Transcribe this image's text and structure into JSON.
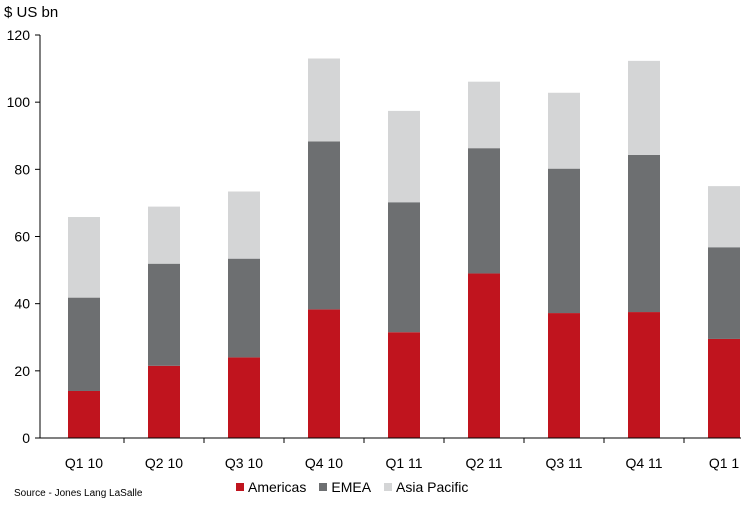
{
  "chart_data": {
    "type": "bar",
    "stacked": true,
    "ylabel": "$ US bn",
    "ylim": [
      0,
      120
    ],
    "yticks": [
      0,
      20,
      40,
      60,
      80,
      100,
      120
    ],
    "categories": [
      "Q1 10",
      "Q2 10",
      "Q3 10",
      "Q4 10",
      "Q1 11",
      "Q2 11",
      "Q3 11",
      "Q4 11",
      "Q1 1"
    ],
    "series": [
      {
        "name": "Americas",
        "color": "#c0141e",
        "values": [
          14,
          21.5,
          24,
          38.3,
          31.5,
          49,
          37.2,
          37.5,
          29.5
        ]
      },
      {
        "name": "EMEA",
        "color": "#6d6f71",
        "values": [
          27.8,
          30.4,
          29.4,
          50,
          38.7,
          37.3,
          43,
          46.8,
          27.3
        ]
      },
      {
        "name": "Asia Pacific",
        "color": "#d4d5d6",
        "values": [
          24,
          17,
          20,
          24.7,
          27.2,
          19.8,
          22.6,
          28,
          18.2
        ]
      }
    ],
    "grid": false,
    "legend_position": "bottom"
  },
  "footer": {
    "source": "Source - Jones Lang LaSalle"
  }
}
